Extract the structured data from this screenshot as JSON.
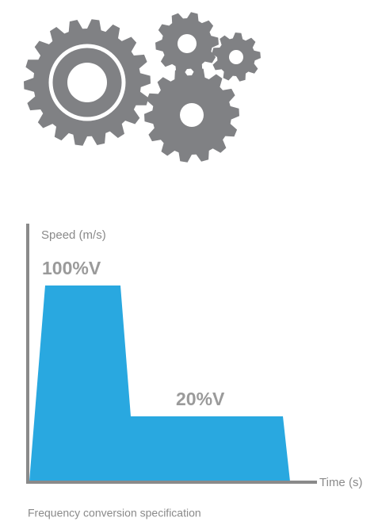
{
  "diagram": {
    "y_axis_label": "Speed (m/s)",
    "x_axis_label": "Time (s)",
    "high_level_label": "100%V",
    "low_level_label": "20%V",
    "caption": "Frequency conversion specification"
  }
}
